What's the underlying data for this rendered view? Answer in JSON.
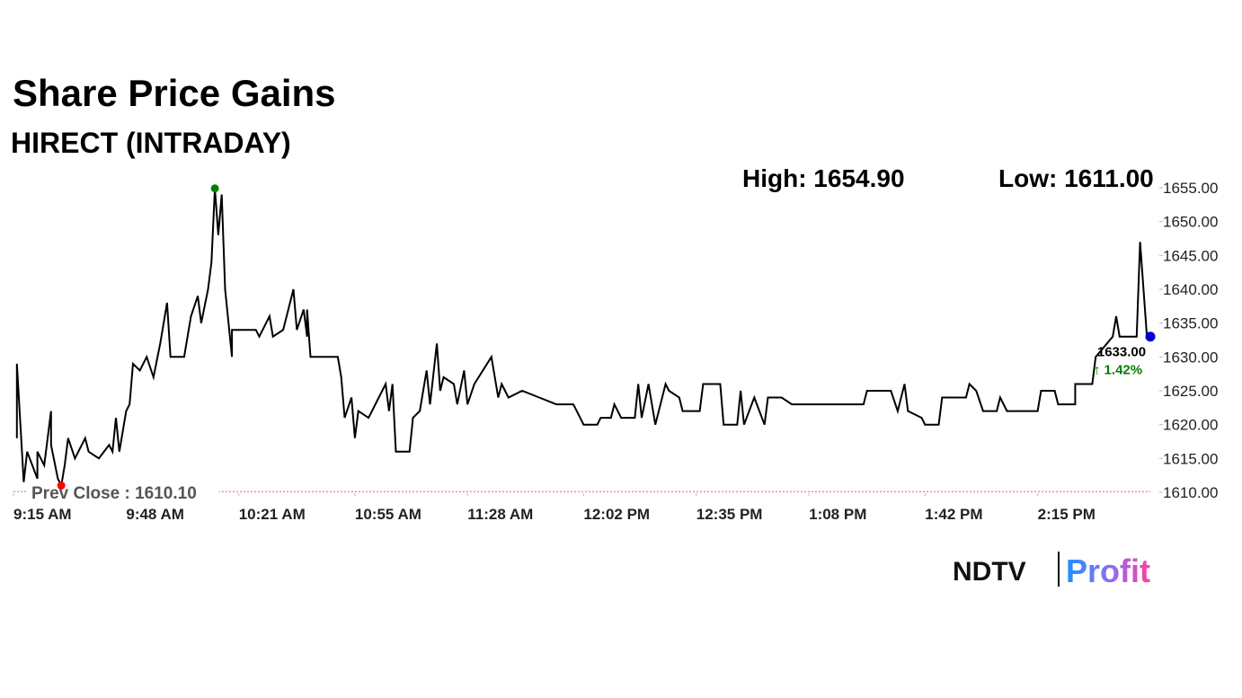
{
  "chart_data": {
    "type": "line",
    "title": "Share Price Gains",
    "subtitle": "HIRECT (INTRADAY)",
    "high": {
      "label": "High: 1654.90",
      "x": 59,
      "value": 1654.9,
      "color": "#008000"
    },
    "low": {
      "label": "Low: 1611.00",
      "x": 14,
      "value": 1611.0,
      "color": "#ff0000"
    },
    "prev_close": {
      "label": "Prev Close : 1610.10",
      "value": 1610.1,
      "color": "#e06060"
    },
    "last": {
      "label": "1633.00",
      "change_label": "↑ 1.42%",
      "x": 333,
      "value": 1633.0,
      "color": "#0000cc",
      "change_color": "#008000"
    },
    "xlim": [
      0,
      333
    ],
    "xticks": [
      {
        "value": 0,
        "label": "9:15 AM"
      },
      {
        "value": 33,
        "label": "9:48 AM"
      },
      {
        "value": 66,
        "label": "10:21 AM"
      },
      {
        "value": 100,
        "label": "10:55 AM"
      },
      {
        "value": 133,
        "label": "11:28 AM"
      },
      {
        "value": 167,
        "label": "12:02 PM"
      },
      {
        "value": 200,
        "label": "12:35 PM"
      },
      {
        "value": 233,
        "label": "1:08 PM"
      },
      {
        "value": 267,
        "label": "1:42 PM"
      },
      {
        "value": 300,
        "label": "2:15 PM"
      }
    ],
    "ylim": [
      1610,
      1655
    ],
    "yticks": [
      {
        "value": 1610,
        "label": "1610.00"
      },
      {
        "value": 1615,
        "label": "1615.00"
      },
      {
        "value": 1620,
        "label": "1620.00"
      },
      {
        "value": 1625,
        "label": "1625.00"
      },
      {
        "value": 1630,
        "label": "1630.00"
      },
      {
        "value": 1635,
        "label": "1635.00"
      },
      {
        "value": 1640,
        "label": "1640.00"
      },
      {
        "value": 1645,
        "label": "1645.00"
      },
      {
        "value": 1650,
        "label": "1650.00"
      },
      {
        "value": 1655,
        "label": "1655.00"
      }
    ],
    "series": [
      {
        "name": "HIRECT",
        "color": "#000000",
        "x": [
          1,
          1,
          3,
          4,
          7,
          7,
          9,
          11,
          11,
          13,
          14,
          15,
          16,
          18,
          21,
          22,
          25,
          28,
          29,
          30,
          31,
          33,
          34,
          35,
          37,
          39,
          41,
          43,
          45,
          46,
          50,
          52,
          54,
          55,
          57,
          58,
          59,
          60,
          61,
          62,
          63,
          64,
          64,
          71,
          72,
          75,
          76,
          79,
          82,
          83,
          85,
          86,
          86,
          87,
          95,
          96,
          97,
          99,
          100,
          101,
          104,
          109,
          110,
          111,
          112,
          116,
          117,
          119,
          121,
          122,
          124,
          125,
          126,
          129,
          130,
          132,
          133,
          135,
          140,
          142,
          143,
          145,
          149,
          154,
          159,
          164,
          167,
          171,
          172,
          175,
          176,
          178,
          182,
          183,
          184,
          186,
          188,
          191,
          192,
          195,
          196,
          201,
          202,
          207,
          208,
          212,
          213,
          214,
          217,
          220,
          221,
          225,
          228,
          232,
          238,
          249,
          250,
          257,
          259,
          261,
          262,
          266,
          267,
          271,
          272,
          279,
          280,
          282,
          284,
          288,
          289,
          291,
          300,
          301,
          305,
          306,
          311,
          311,
          316,
          317,
          322,
          323,
          324,
          329,
          330,
          332,
          333
        ],
        "values": [
          1618,
          1629,
          1611.5,
          1616,
          1612,
          1616,
          1614,
          1622,
          1617,
          1612,
          1611,
          1614,
          1618,
          1615,
          1618,
          1616,
          1615,
          1617,
          1616,
          1621,
          1616,
          1622,
          1623,
          1629,
          1628,
          1630,
          1627,
          1632,
          1638,
          1630,
          1630,
          1636,
          1639,
          1635,
          1640,
          1644,
          1654.9,
          1648,
          1654,
          1640,
          1635,
          1630,
          1634,
          1634,
          1633,
          1636,
          1633,
          1634,
          1640,
          1634,
          1637,
          1633,
          1637,
          1630,
          1630,
          1627,
          1621,
          1624,
          1618,
          1622,
          1621,
          1626,
          1622,
          1626,
          1616,
          1616,
          1621,
          1622,
          1628,
          1623,
          1632,
          1625,
          1627,
          1626,
          1623,
          1628,
          1623,
          1626,
          1630,
          1624,
          1626,
          1624,
          1625,
          1624,
          1623,
          1623,
          1620,
          1620,
          1621,
          1621,
          1623,
          1621,
          1621,
          1626,
          1621,
          1626,
          1620,
          1626,
          1625,
          1624,
          1622,
          1622,
          1626,
          1626,
          1620,
          1620,
          1625,
          1620,
          1624,
          1620,
          1624,
          1624,
          1623,
          1623,
          1623,
          1623,
          1625,
          1625,
          1622,
          1626,
          1622,
          1621,
          1620,
          1620,
          1624,
          1624,
          1626,
          1625,
          1622,
          1622,
          1624,
          1622,
          1622,
          1625,
          1625,
          1623,
          1623,
          1626,
          1626,
          1630,
          1633,
          1636,
          1633,
          1633,
          1647,
          1633,
          1633
        ]
      }
    ],
    "logo": {
      "brand": "NDTV",
      "product": "Profit"
    }
  }
}
